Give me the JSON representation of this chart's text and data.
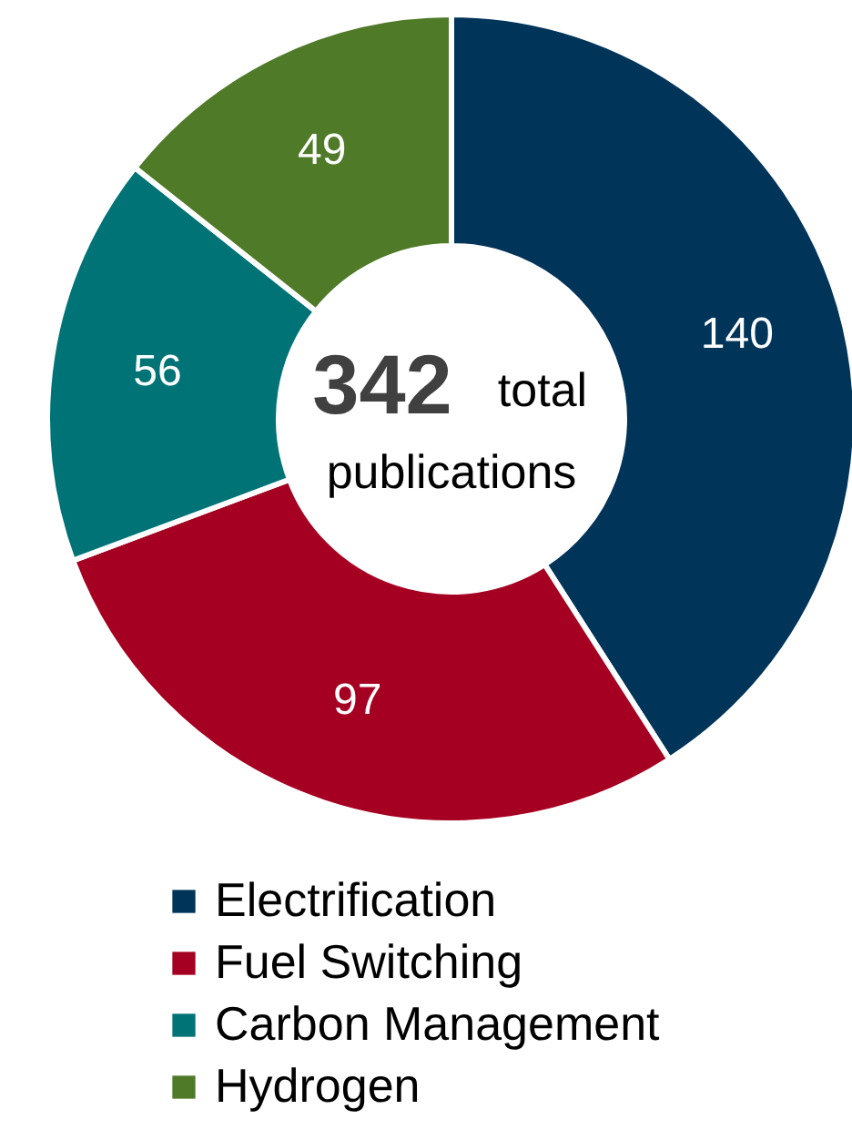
{
  "chart_data": {
    "type": "donut",
    "categories": [
      "Electrification",
      "Fuel Switching",
      "Carbon Management",
      "Hydrogen"
    ],
    "values": [
      140,
      97,
      56,
      49
    ],
    "colors": [
      "#003459",
      "#a50021",
      "#007377",
      "#4f7a28"
    ],
    "data_labels": true,
    "legend": "bottom",
    "annotations": [
      "342",
      "total",
      "publications"
    ]
  }
}
